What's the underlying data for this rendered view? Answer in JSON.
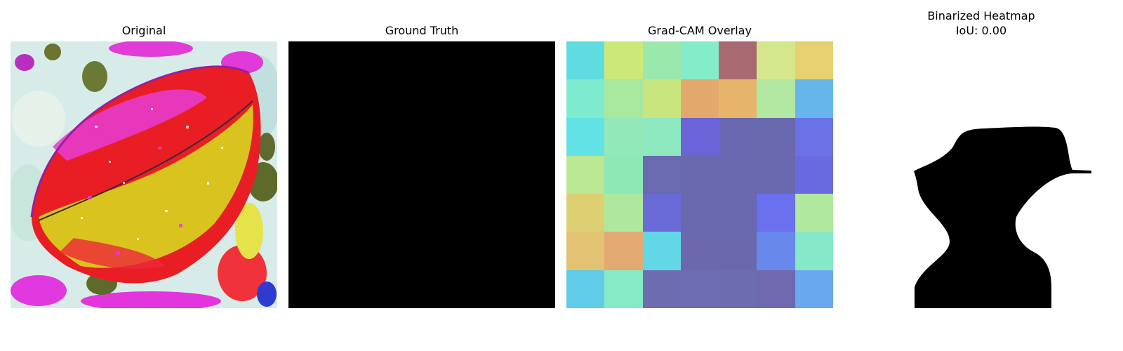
{
  "panels": {
    "original": {
      "title": "Original"
    },
    "ground_truth": {
      "title": "Ground Truth"
    },
    "overlay": {
      "title": "Grad-CAM Overlay",
      "grid": [
        [
          "#5fdce0",
          "#cbe878",
          "#9be8ad",
          "#85ecc9",
          "#a86a70",
          "#d4e78c",
          "#e6d070"
        ],
        [
          "#7eead0",
          "#a8e79e",
          "#c9e67e",
          "#e3a96c",
          "#e7b46c",
          "#b2e8a2",
          "#66b6ec"
        ],
        [
          "#62e2e4",
          "#92e8b8",
          "#8ee8c0",
          "#6a64d8",
          "#6a68b0",
          "#6a68ae",
          "#6a72e6"
        ],
        [
          "#bbe894",
          "#8ee8b6",
          "#6a6ab0",
          "#6a68ae",
          "#6a68ae",
          "#6a68ae",
          "#6a6ae0"
        ],
        [
          "#ddcf72",
          "#ade89e",
          "#6a6ad8",
          "#6a68ae",
          "#6a68ae",
          "#6a70ee",
          "#b0e89e"
        ],
        [
          "#e2c374",
          "#e3a972",
          "#62d8e6",
          "#6b68ae",
          "#6b68ae",
          "#6888ec",
          "#86e8c8"
        ],
        [
          "#60cce8",
          "#86eac6",
          "#6e6cb0",
          "#6e6cb2",
          "#6e6cb0",
          "#6e68ae",
          "#67a8ee"
        ]
      ]
    },
    "binarized": {
      "title_line1": "Binarized Heatmap",
      "title_line2": "IoU: 0.00"
    }
  }
}
